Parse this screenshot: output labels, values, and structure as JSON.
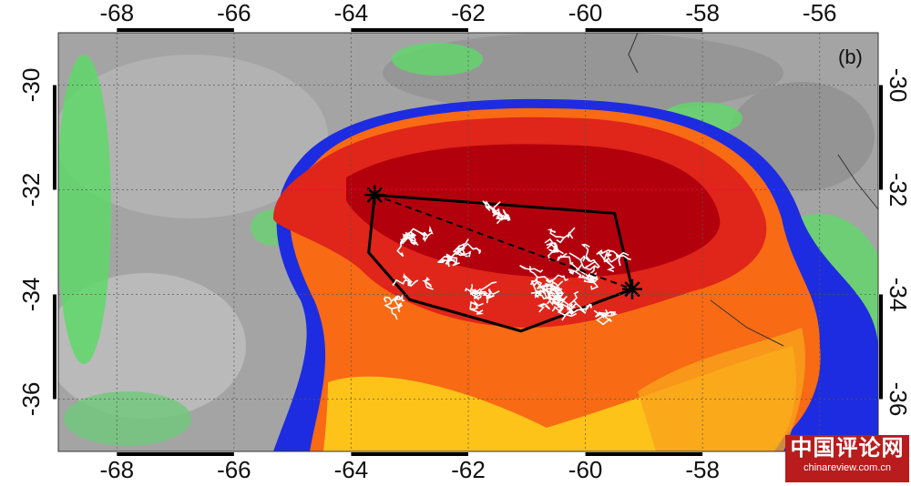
{
  "panel_label": "(b)",
  "axes": {
    "x_ticks": [
      "-68",
      "-66",
      "-64",
      "-62",
      "-60",
      "-58",
      "-56"
    ],
    "y_ticks": [
      "-30",
      "-32",
      "-34",
      "-36"
    ]
  },
  "map": {
    "lon_range": [
      -69.0,
      -55.0
    ],
    "lat_range": [
      -29.0,
      -37.0
    ],
    "grid": true,
    "colors": {
      "background_gray": "#9e9e9e",
      "cloud_red_dark": "#b3000d",
      "cloud_red": "#e0251a",
      "cloud_orange": "#f86a14",
      "cloud_yellow": "#ffd21a",
      "cloud_blue": "#1d2ce0",
      "cloud_green": "#5fd86a",
      "lightning_flash": "#ffffff",
      "outline": "#000000"
    },
    "markers": [
      {
        "name": "west-star",
        "lon": -63.6,
        "lat": -32.1
      },
      {
        "name": "east-star",
        "lon": -59.2,
        "lat": -33.9
      }
    ],
    "flash_polygon": [
      [
        -63.6,
        -32.1
      ],
      [
        -59.5,
        -32.45
      ],
      [
        -59.2,
        -33.9
      ],
      [
        -61.1,
        -34.7
      ],
      [
        -63.0,
        -34.1
      ],
      [
        -63.7,
        -33.2
      ]
    ]
  },
  "watermark": {
    "title": "中国评论网",
    "url": "chinareview.com.cn"
  }
}
